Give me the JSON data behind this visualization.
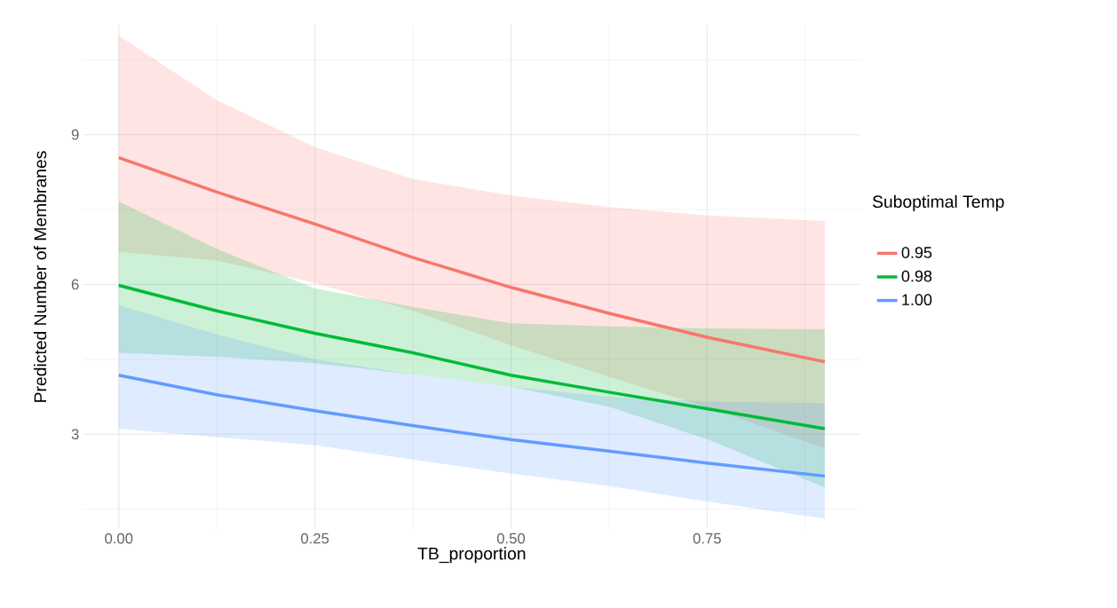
{
  "chart_data": {
    "type": "line",
    "xlabel": "TB_proportion",
    "ylabel": "Predicted Number of Membranes",
    "legend_title": "Suboptimal Temp",
    "x": [
      0,
      0.125,
      0.25,
      0.375,
      0.5,
      0.625,
      0.75,
      0.9
    ],
    "series": [
      {
        "name": "0.95",
        "color": "#f8766d",
        "values": [
          8.54,
          7.85,
          7.21,
          6.54,
          5.94,
          5.42,
          4.94,
          4.45
        ],
        "upper": [
          10.98,
          9.69,
          8.75,
          8.11,
          7.78,
          7.55,
          7.38,
          7.27
        ],
        "lower": [
          6.65,
          6.48,
          6.03,
          5.47,
          4.78,
          4.15,
          3.54,
          2.72
        ]
      },
      {
        "name": "0.98",
        "color": "#00ba38",
        "values": [
          5.98,
          5.47,
          5.02,
          4.63,
          4.18,
          3.84,
          3.51,
          3.11
        ],
        "upper": [
          7.66,
          6.71,
          5.92,
          5.55,
          5.22,
          5.16,
          5.12,
          5.1
        ],
        "lower": [
          4.63,
          4.55,
          4.42,
          4.2,
          3.95,
          3.55,
          2.9,
          1.93
        ]
      },
      {
        "name": "1.00",
        "color": "#619cff",
        "values": [
          4.18,
          3.79,
          3.47,
          3.17,
          2.89,
          2.66,
          2.42,
          2.16
        ],
        "upper": [
          5.58,
          5.0,
          4.5,
          4.2,
          3.95,
          3.75,
          3.65,
          3.62
        ],
        "lower": [
          3.11,
          2.94,
          2.78,
          2.49,
          2.21,
          1.96,
          1.65,
          1.31
        ]
      }
    ],
    "xlim": [
      -0.045,
      0.945
    ],
    "ylim": [
      1.1,
      11.2
    ],
    "xticks": [
      {
        "value": 0,
        "label": "0.00"
      },
      {
        "value": 0.25,
        "label": "0.25"
      },
      {
        "value": 0.5,
        "label": "0.50"
      },
      {
        "value": 0.75,
        "label": "0.75"
      }
    ],
    "yticks": [
      3,
      6,
      9
    ],
    "grid": true,
    "legend": "right",
    "marker": "none",
    "line_style": "solid"
  }
}
